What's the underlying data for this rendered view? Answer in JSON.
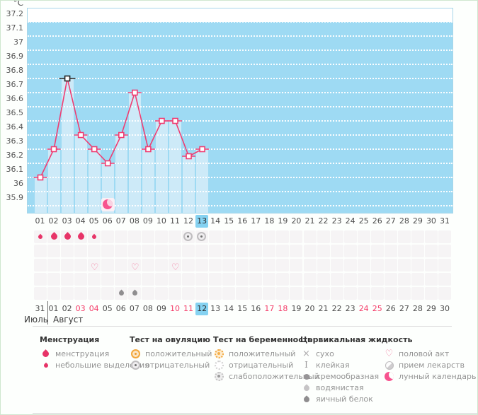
{
  "chart_data": {
    "type": "line",
    "title": "",
    "ylabel": "°C",
    "ylim": [
      35.9,
      37.2
    ],
    "y_ticks": [
      "37.2",
      "37.1",
      "37",
      "36.9",
      "36.8",
      "36.7",
      "36.6",
      "36.5",
      "36.4",
      "36.3",
      "36.2",
      "36.1",
      "36",
      "35.9"
    ],
    "grid": "horizontal-dotted-white",
    "x_days": [
      "01",
      "02",
      "03",
      "04",
      "05",
      "06",
      "07",
      "08",
      "09",
      "10",
      "11",
      "12",
      "13"
    ],
    "values": [
      36.1,
      36.3,
      36.8,
      36.4,
      36.3,
      36.2,
      36.4,
      36.7,
      36.3,
      36.5,
      36.5,
      36.25,
      36.3
    ],
    "black_marker_day": "03",
    "moon_icon_day": "06",
    "series_color": "#ef3d72",
    "plot_bg": "#9edaf3",
    "bar_color": "#cdeaf8"
  },
  "calendar": {
    "cycle_days": [
      "01",
      "02",
      "03",
      "04",
      "05",
      "06",
      "07",
      "08",
      "09",
      "10",
      "11",
      "12",
      "13",
      "14",
      "15",
      "16",
      "17",
      "18",
      "19",
      "20",
      "21",
      "22",
      "23",
      "24",
      "25",
      "26",
      "27",
      "28",
      "29",
      "30",
      "31"
    ],
    "selected_cycle_day": "13",
    "dates": [
      "31",
      "01",
      "02",
      "03",
      "04",
      "05",
      "06",
      "07",
      "08",
      "09",
      "10",
      "11",
      "12",
      "13",
      "14",
      "15",
      "16",
      "17",
      "18",
      "19",
      "20",
      "21",
      "22",
      "23",
      "24",
      "25",
      "26",
      "27",
      "28",
      "29",
      "30"
    ],
    "selected_date": "12",
    "weekend_dates": [
      "03",
      "04",
      "10",
      "11",
      "17",
      "18",
      "24",
      "25"
    ],
    "month_left": "Июль",
    "month_right": "Август",
    "highlight_color": "#85d2f1"
  },
  "events": {
    "rows": [
      {
        "name": "menstruation-and-ovulation-test",
        "icons": {
          "01": "drop-small",
          "02": "drop-large",
          "03": "drop-large",
          "04": "drop-large",
          "05": "drop-small",
          "12": "ovulation-negative",
          "13": "ovulation-negative"
        }
      },
      {
        "name": "empty-row-1",
        "icons": {}
      },
      {
        "name": "intercourse",
        "icons": {
          "05": "heart",
          "08": "heart",
          "11": "heart"
        }
      },
      {
        "name": "empty-row-2",
        "icons": {}
      },
      {
        "name": "cervical-fluid",
        "icons": {
          "07": "eggwhite",
          "08": "eggwhite"
        }
      }
    ]
  },
  "legend": {
    "sections": [
      {
        "title": "Менструация",
        "items": [
          {
            "icon": "drop-large",
            "label": "менструация"
          },
          {
            "icon": "drop-small",
            "label": "небольшие выделения"
          }
        ]
      },
      {
        "title": "Тест на овуляцию",
        "items": [
          {
            "icon": "ovulation-positive",
            "label": "положительный"
          },
          {
            "icon": "ovulation-negative",
            "label": "отрицательный"
          }
        ]
      },
      {
        "title": "Тест на беременность",
        "items": [
          {
            "icon": "pregnancy-positive",
            "label": "положительный"
          },
          {
            "icon": "pregnancy-negative",
            "label": "отрицательный"
          },
          {
            "icon": "pregnancy-weak-positive",
            "label": "слабоположительный"
          }
        ]
      },
      {
        "title": "Цервикальная жидкость",
        "items": [
          {
            "icon": "dry",
            "label": "сухо"
          },
          {
            "icon": "sticky",
            "label": "клейкая"
          },
          {
            "icon": "creamy",
            "label": "кремообразная"
          },
          {
            "icon": "watery",
            "label": "водянистая"
          },
          {
            "icon": "eggwhite",
            "label": "яичный белок"
          }
        ]
      },
      {
        "title": "",
        "items": [
          {
            "icon": "heart",
            "label": "половой акт"
          },
          {
            "icon": "pill",
            "label": "прием лекарств"
          },
          {
            "icon": "moon",
            "label": "лунный календарь"
          }
        ]
      }
    ]
  }
}
